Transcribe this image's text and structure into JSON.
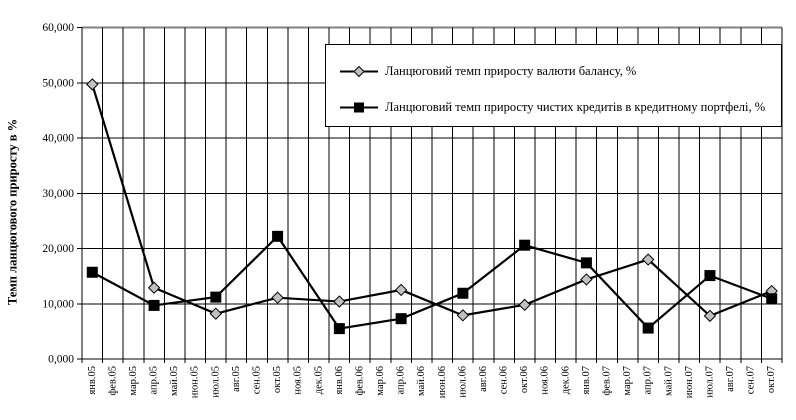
{
  "chart_data": {
    "type": "line",
    "title": "",
    "xlabel": "",
    "ylabel": "Темп ланцюгового приросту в %",
    "categories": [
      "янв.05",
      "фев.05",
      "мар.05",
      "апр.05",
      "май.05",
      "июн.05",
      "июл.05",
      "авг.05",
      "сен.05",
      "окт.05",
      "ноя.05",
      "дек.05",
      "янв.06",
      "фев.06",
      "мар.06",
      "апр.06",
      "май.06",
      "июн.06",
      "июл.06",
      "авг.06",
      "сен.06",
      "окт.06",
      "ноя.06",
      "дек.06",
      "янв.07",
      "фев.07",
      "мар.07",
      "апр.07",
      "май.07",
      "июн.07",
      "июл.07",
      "авг.07",
      "сен.07",
      "окт.07"
    ],
    "marker_x_indices": [
      0,
      3,
      6,
      9,
      12,
      15,
      18,
      21,
      24,
      27,
      30,
      33
    ],
    "ylim": [
      0,
      60
    ],
    "y_ticks": [
      0,
      10,
      20,
      30,
      40,
      50,
      60
    ],
    "y_tick_labels": [
      "0,000",
      "10,000",
      "20,000",
      "30,000",
      "40,000",
      "50,000",
      "60,000"
    ],
    "grid": true,
    "legend_position": "top-right-inside",
    "series": [
      {
        "name": "Ланцюговий темп приросту валюти балансу, %",
        "marker": "diamond",
        "marker_fill": "#c0c0c0",
        "line_color": "#000000",
        "values": [
          49.7,
          12.9,
          8.2,
          11.1,
          10.4,
          12.5,
          7.9,
          9.8,
          14.4,
          18.0,
          7.8,
          12.3
        ]
      },
      {
        "name": "Ланцюговий темп приросту чистих кредитів в кредитному портфелі, %",
        "marker": "square",
        "marker_fill": "#000000",
        "line_color": "#000000",
        "values": [
          15.7,
          9.7,
          11.2,
          22.2,
          5.5,
          7.3,
          11.9,
          20.6,
          17.4,
          5.6,
          15.1,
          10.9
        ]
      }
    ],
    "colors": {
      "gridline": "#000000",
      "top_gridline": "#808080",
      "axis": "#000000",
      "background": "#ffffff"
    }
  }
}
